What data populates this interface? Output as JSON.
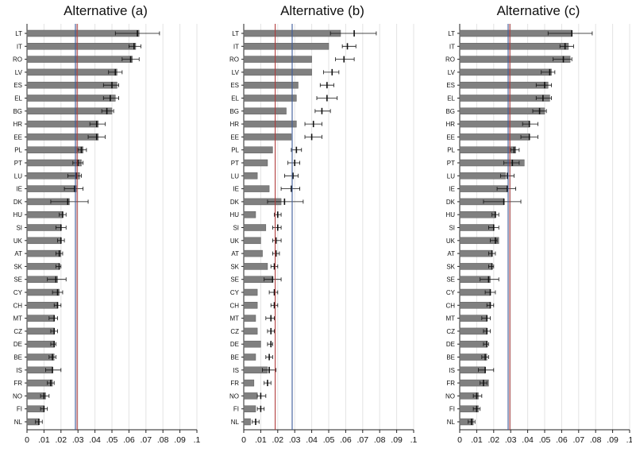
{
  "chart_data": {
    "type": "bar",
    "orientation": "horizontal",
    "countries": [
      "LT",
      "IT",
      "RO",
      "LV",
      "ES",
      "EL",
      "BG",
      "HR",
      "EE",
      "PL",
      "PT",
      "LU",
      "IE",
      "DK",
      "HU",
      "SI",
      "UK",
      "AT",
      "SK",
      "SE",
      "CY",
      "CH",
      "MT",
      "CZ",
      "DE",
      "BE",
      "IS",
      "FR",
      "NO",
      "FI",
      "NL"
    ],
    "x_ticks": [
      "0",
      ".01",
      ".02",
      ".03",
      ".04",
      ".05",
      ".06",
      ".07",
      ".08",
      ".09",
      ".1"
    ],
    "xlim": [
      0,
      0.1
    ],
    "grid": true,
    "panels": [
      {
        "title": "Alternative (a)",
        "ref_lines": [
          {
            "value": 0.0285,
            "color": "#3b5a9a"
          },
          {
            "value": 0.0295,
            "color": "#b03a3a"
          }
        ],
        "values": [
          0.066,
          0.064,
          0.062,
          0.053,
          0.053,
          0.052,
          0.05,
          0.042,
          0.042,
          0.033,
          0.032,
          0.031,
          0.029,
          0.025,
          0.021,
          0.02,
          0.02,
          0.02,
          0.019,
          0.018,
          0.019,
          0.018,
          0.016,
          0.016,
          0.016,
          0.016,
          0.015,
          0.015,
          0.011,
          0.01,
          0.007
        ],
        "points": [
          0.065,
          0.063,
          0.061,
          0.052,
          0.05,
          0.049,
          0.047,
          0.041,
          0.041,
          0.032,
          0.03,
          0.029,
          0.028,
          0.024,
          0.021,
          0.02,
          0.02,
          0.019,
          0.019,
          0.017,
          0.018,
          0.018,
          0.016,
          0.016,
          0.016,
          0.015,
          0.015,
          0.014,
          0.01,
          0.01,
          0.007
        ],
        "ci_low": [
          0.052,
          0.06,
          0.056,
          0.048,
          0.045,
          0.045,
          0.044,
          0.037,
          0.036,
          0.03,
          0.027,
          0.024,
          0.022,
          0.014,
          0.019,
          0.017,
          0.018,
          0.017,
          0.017,
          0.012,
          0.015,
          0.016,
          0.013,
          0.014,
          0.014,
          0.013,
          0.011,
          0.012,
          0.008,
          0.008,
          0.005
        ],
        "ci_high": [
          0.078,
          0.067,
          0.066,
          0.056,
          0.054,
          0.054,
          0.051,
          0.046,
          0.046,
          0.035,
          0.033,
          0.032,
          0.033,
          0.036,
          0.023,
          0.023,
          0.022,
          0.021,
          0.02,
          0.023,
          0.021,
          0.02,
          0.018,
          0.018,
          0.017,
          0.017,
          0.02,
          0.016,
          0.013,
          0.012,
          0.009
        ]
      },
      {
        "title": "Alternative (b)",
        "ref_lines": [
          {
            "value": 0.0185,
            "color": "#b03a3a"
          },
          {
            "value": 0.0285,
            "color": "#3b5a9a"
          }
        ],
        "values": [
          0.057,
          0.05,
          0.04,
          0.04,
          0.032,
          0.031,
          0.025,
          0.031,
          0.028,
          0.017,
          0.014,
          0.008,
          0.015,
          0.022,
          0.007,
          0.013,
          0.01,
          0.011,
          0.014,
          0.017,
          0.008,
          0.008,
          0.007,
          0.008,
          0.01,
          0.007,
          0.014,
          0.006,
          0.008,
          0.007,
          0.004
        ],
        "points": [
          0.065,
          0.061,
          0.059,
          0.052,
          0.049,
          0.049,
          0.046,
          0.041,
          0.04,
          0.031,
          0.03,
          0.029,
          0.028,
          0.024,
          0.02,
          0.02,
          0.019,
          0.019,
          0.018,
          0.017,
          0.018,
          0.018,
          0.016,
          0.016,
          0.016,
          0.015,
          0.015,
          0.014,
          0.01,
          0.01,
          0.007
        ],
        "ci_low": [
          0.051,
          0.058,
          0.054,
          0.047,
          0.045,
          0.043,
          0.042,
          0.036,
          0.036,
          0.028,
          0.026,
          0.024,
          0.022,
          0.014,
          0.018,
          0.017,
          0.017,
          0.017,
          0.016,
          0.012,
          0.015,
          0.016,
          0.013,
          0.014,
          0.014,
          0.013,
          0.011,
          0.012,
          0.008,
          0.008,
          0.005
        ],
        "ci_high": [
          0.078,
          0.066,
          0.065,
          0.056,
          0.053,
          0.055,
          0.051,
          0.046,
          0.046,
          0.034,
          0.033,
          0.032,
          0.033,
          0.035,
          0.022,
          0.022,
          0.022,
          0.021,
          0.02,
          0.022,
          0.02,
          0.02,
          0.018,
          0.018,
          0.017,
          0.017,
          0.019,
          0.016,
          0.013,
          0.012,
          0.009
        ]
      },
      {
        "title": "Alternative (c)",
        "ref_lines": [
          {
            "value": 0.0285,
            "color": "#3b5a9a"
          },
          {
            "value": 0.0295,
            "color": "#b03a3a"
          }
        ],
        "values": [
          0.066,
          0.064,
          0.065,
          0.054,
          0.052,
          0.053,
          0.05,
          0.041,
          0.041,
          0.033,
          0.038,
          0.027,
          0.028,
          0.026,
          0.021,
          0.02,
          0.023,
          0.019,
          0.019,
          0.018,
          0.018,
          0.018,
          0.016,
          0.016,
          0.016,
          0.016,
          0.015,
          0.017,
          0.011,
          0.011,
          0.008
        ],
        "points": [
          0.066,
          0.062,
          0.061,
          0.053,
          0.05,
          0.049,
          0.047,
          0.041,
          0.041,
          0.032,
          0.031,
          0.028,
          0.028,
          0.026,
          0.021,
          0.02,
          0.021,
          0.019,
          0.019,
          0.017,
          0.018,
          0.018,
          0.016,
          0.016,
          0.016,
          0.015,
          0.015,
          0.014,
          0.01,
          0.01,
          0.007
        ],
        "ci_low": [
          0.052,
          0.059,
          0.055,
          0.048,
          0.045,
          0.045,
          0.043,
          0.037,
          0.036,
          0.03,
          0.026,
          0.024,
          0.022,
          0.014,
          0.019,
          0.017,
          0.018,
          0.017,
          0.017,
          0.012,
          0.015,
          0.016,
          0.013,
          0.014,
          0.014,
          0.013,
          0.011,
          0.012,
          0.008,
          0.008,
          0.005
        ],
        "ci_high": [
          0.078,
          0.067,
          0.066,
          0.056,
          0.054,
          0.054,
          0.051,
          0.046,
          0.046,
          0.035,
          0.035,
          0.032,
          0.033,
          0.036,
          0.023,
          0.023,
          0.022,
          0.021,
          0.02,
          0.023,
          0.021,
          0.02,
          0.018,
          0.018,
          0.017,
          0.017,
          0.02,
          0.016,
          0.013,
          0.012,
          0.009
        ]
      }
    ],
    "colors": {
      "bar": "#808080",
      "bar_edge": "#5a5a5a",
      "grid": "#e3e3e3",
      "axis": "#222222",
      "marker": "#111111"
    }
  }
}
